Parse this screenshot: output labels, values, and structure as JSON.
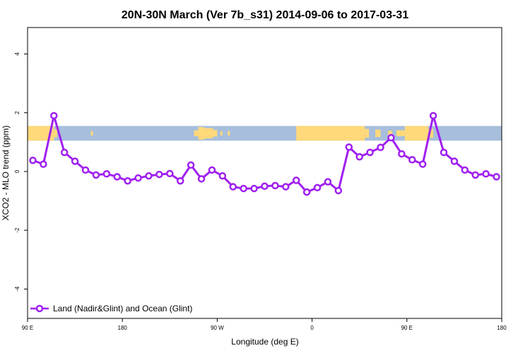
{
  "chart_data": {
    "type": "line",
    "title": "20N-30N March (Ver 7b_s31)   2014-09-06 to 2017-03-31",
    "xlabel": "Longitude (deg E)",
    "ylabel": "XCO2 - MLO trend (ppm)",
    "xlim": [
      90,
      540
    ],
    "ylim": [
      -5,
      4.9
    ],
    "x_ticks": [
      {
        "value": 90,
        "label": "90 E"
      },
      {
        "value": 180,
        "label": "180"
      },
      {
        "value": 270,
        "label": "90 W"
      },
      {
        "value": 360,
        "label": "0"
      },
      {
        "value": 450,
        "label": "90 E"
      },
      {
        "value": 540,
        "label": "180"
      }
    ],
    "y_ticks": [
      {
        "value": -4,
        "label": "-4"
      },
      {
        "value": -2,
        "label": "-2"
      },
      {
        "value": 0,
        "label": "0"
      },
      {
        "value": 2,
        "label": "2"
      },
      {
        "value": 4,
        "label": "4"
      }
    ],
    "grid": false,
    "legend_position": "bottom-left",
    "band": {
      "y_range": [
        1.05,
        1.55
      ],
      "land_color": "#FFD97A",
      "ocean_color": "#A7BEDC"
    },
    "series": [
      {
        "name": "Land (Nadir&Glint) and Ocean (Glint)",
        "color": "#A020F0",
        "x": [
          95,
          105,
          115,
          125,
          135,
          145,
          155,
          165,
          175,
          185,
          195,
          205,
          215,
          225,
          235,
          245,
          255,
          265,
          275,
          285,
          295,
          305,
          315,
          325,
          335,
          345,
          355,
          365,
          375,
          385,
          395,
          405,
          415,
          425,
          435,
          445,
          455,
          465,
          475,
          485,
          495,
          505,
          515,
          525,
          535
        ],
        "values": [
          0.38,
          0.25,
          1.9,
          0.65,
          0.35,
          0.05,
          -0.12,
          -0.08,
          -0.18,
          -0.32,
          -0.22,
          -0.15,
          -0.1,
          -0.07,
          -0.32,
          0.22,
          -0.25,
          0.05,
          -0.15,
          -0.52,
          -0.58,
          -0.58,
          -0.5,
          -0.48,
          -0.52,
          -0.3,
          -0.7,
          -0.55,
          -0.35,
          -0.65,
          0.83,
          0.5,
          0.65,
          0.82,
          1.15,
          0.6,
          0.4,
          0.25,
          1.9,
          0.65,
          0.35,
          0.05,
          -0.12,
          -0.08,
          -0.18
        ]
      }
    ]
  }
}
